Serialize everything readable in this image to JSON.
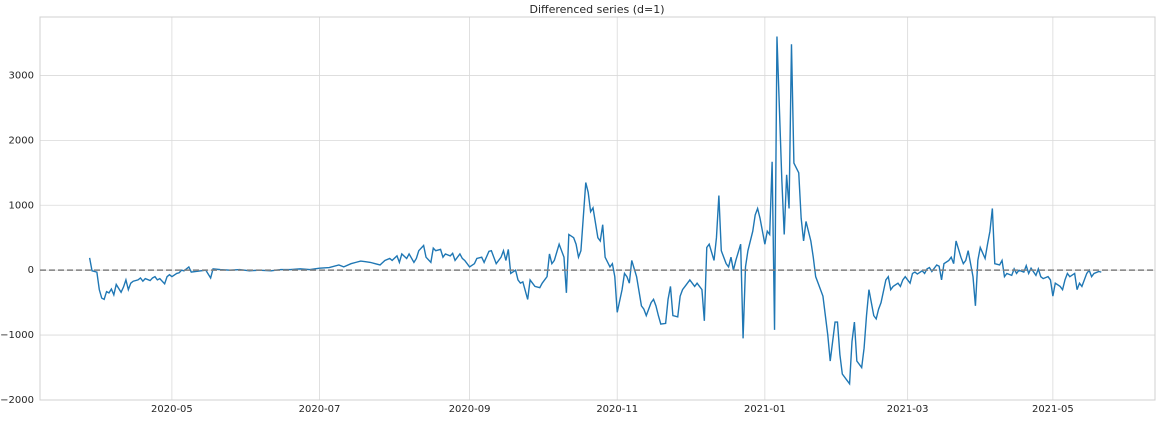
{
  "chart_data": {
    "type": "line",
    "title": "Differenced series (d=1)",
    "x": [
      87,
      88,
      90,
      91,
      92,
      93,
      94,
      95,
      96,
      97,
      98,
      100,
      101,
      102,
      103,
      104,
      105,
      107,
      108,
      109,
      110,
      112,
      113,
      114,
      115,
      116,
      118,
      119,
      120,
      121,
      123,
      124,
      125,
      126,
      128,
      129,
      131,
      133,
      135,
      137,
      138,
      141,
      145,
      149,
      153,
      157,
      162,
      166,
      170,
      174,
      178,
      182,
      186,
      190,
      192,
      195,
      197,
      199,
      201,
      203,
      205,
      207,
      209,
      211,
      212,
      214,
      215,
      216,
      218,
      219,
      221,
      222,
      223,
      225,
      226,
      228,
      229,
      230,
      232,
      233,
      234,
      236,
      237,
      238,
      240,
      241,
      242,
      244,
      246,
      247,
      249,
      250,
      252,
      253,
      254,
      255,
      257,
      258,
      259,
      260,
      261,
      263,
      264,
      265,
      266,
      268,
      269,
      270,
      271,
      273,
      274,
      276,
      277,
      278,
      279,
      281,
      282,
      283,
      284,
      285,
      287,
      288,
      289,
      290,
      292,
      293,
      294,
      295,
      297,
      298,
      299,
      300,
      302,
      303,
      304,
      305,
      307,
      308,
      309,
      310,
      311,
      313,
      315,
      316,
      317,
      319,
      320,
      321,
      322,
      323,
      325,
      326,
      327,
      328,
      330,
      331,
      332,
      333,
      335,
      336,
      337,
      338,
      340,
      341,
      342,
      343,
      345,
      346,
      347,
      348,
      350,
      351,
      352,
      353,
      354,
      356,
      357,
      358,
      359,
      361,
      362,
      363,
      364,
      366,
      367,
      368,
      369,
      370,
      371,
      373,
      374,
      375,
      376,
      377,
      378,
      380,
      381,
      382,
      383,
      385,
      386,
      387,
      388,
      390,
      391,
      392,
      393,
      395,
      396,
      397,
      398,
      400,
      401,
      402,
      403,
      404,
      406,
      407,
      408,
      409,
      411,
      412,
      413,
      414,
      416,
      417,
      418,
      419,
      421,
      422,
      423,
      424,
      426,
      427,
      428,
      429,
      431,
      432,
      433,
      434,
      435,
      437,
      438,
      439,
      440,
      442,
      443,
      444,
      445,
      447,
      448,
      449,
      450,
      452,
      453,
      454,
      455,
      457,
      458,
      459,
      460,
      461,
      463,
      464,
      465,
      466,
      468,
      469,
      470,
      471,
      473,
      474,
      475,
      476,
      478,
      479,
      480,
      481,
      483,
      484,
      485,
      486,
      488,
      489,
      490,
      491,
      492,
      494,
      495,
      496,
      497,
      499,
      500,
      501,
      502,
      504,
      505
    ],
    "series": [
      {
        "name": "Differenced",
        "color": "#1f77b4",
        "values": [
          190,
          -10,
          -30,
          -300,
          -430,
          -450,
          -330,
          -350,
          -290,
          -380,
          -220,
          -340,
          -260,
          -150,
          -300,
          -200,
          -170,
          -150,
          -120,
          -170,
          -130,
          -160,
          -120,
          -100,
          -150,
          -130,
          -210,
          -100,
          -70,
          -100,
          -50,
          -40,
          0,
          -10,
          50,
          -30,
          -20,
          -10,
          0,
          -120,
          20,
          10,
          0,
          10,
          -10,
          0,
          -10,
          10,
          10,
          20,
          10,
          30,
          40,
          80,
          50,
          100,
          120,
          140,
          130,
          120,
          100,
          80,
          150,
          180,
          150,
          220,
          120,
          250,
          180,
          250,
          120,
          180,
          300,
          380,
          200,
          120,
          340,
          300,
          320,
          200,
          250,
          220,
          260,
          150,
          250,
          180,
          150,
          50,
          100,
          180,
          200,
          120,
          290,
          300,
          200,
          100,
          200,
          300,
          150,
          320,
          -50,
          0,
          -150,
          -200,
          -180,
          -450,
          -150,
          -200,
          -250,
          -270,
          -200,
          -100,
          250,
          100,
          150,
          400,
          300,
          200,
          -350,
          550,
          500,
          400,
          200,
          300,
          1350,
          1200,
          900,
          960,
          500,
          450,
          700,
          200,
          50,
          100,
          -100,
          -650,
          -300,
          -50,
          -100,
          -200,
          150,
          -100,
          -550,
          -600,
          -700,
          -500,
          -450,
          -550,
          -700,
          -830,
          -820,
          -450,
          -250,
          -700,
          -720,
          -400,
          -300,
          -250,
          -150,
          -200,
          -250,
          -200,
          -300,
          -780,
          350,
          400,
          150,
          500,
          1150,
          300,
          100,
          50,
          200,
          0,
          150,
          400,
          -1050,
          50,
          300,
          600,
          850,
          950,
          800,
          400,
          600,
          550,
          1670,
          -920,
          3600,
          1400,
          550,
          1470,
          950,
          3480,
          1650,
          1500,
          800,
          450,
          750,
          450,
          200,
          -100,
          -200,
          -400,
          -700,
          -1000,
          -1400,
          -800,
          -800,
          -1300,
          -1600,
          -1700,
          -1750,
          -1100,
          -800,
          -1400,
          -1500,
          -1200,
          -700,
          -300,
          -700,
          -750,
          -600,
          -500,
          -150,
          -100,
          -300,
          -250,
          -200,
          -250,
          -150,
          -100,
          -200,
          -50,
          -30,
          -60,
          -10,
          -50,
          20,
          40,
          -20,
          80,
          60,
          -150,
          100,
          150,
          200,
          100,
          450,
          200,
          100,
          150,
          300,
          -100,
          -550,
          150,
          350,
          180,
          400,
          600,
          950,
          100,
          80,
          150,
          -100,
          -50,
          -80,
          20,
          -50,
          0,
          -30,
          70,
          -50,
          30,
          -80,
          20,
          -100,
          -130,
          -100,
          -150,
          -400,
          -200,
          -250,
          -300,
          -150,
          -50,
          -100,
          -50,
          -300,
          -200,
          -250,
          -50,
          0,
          -100,
          -50,
          -20,
          -30
        ]
      }
    ],
    "xlim": [
      66.5,
      527.2
    ],
    "xticks": [
      {
        "value": 121,
        "label": "2020-05"
      },
      {
        "value": 182,
        "label": "2020-07"
      },
      {
        "value": 244,
        "label": "2020-09"
      },
      {
        "value": 305,
        "label": "2020-11"
      },
      {
        "value": 366,
        "label": "2021-01"
      },
      {
        "value": 425,
        "label": "2021-03"
      },
      {
        "value": 485,
        "label": "2021-05"
      }
    ],
    "ylim": [
      -2000,
      3900
    ],
    "yticks": [
      {
        "value": -2000,
        "label": "−2000"
      },
      {
        "value": -1000,
        "label": "−1000"
      },
      0,
      1000,
      2000,
      3000
    ],
    "reference_line": 0,
    "reference_color": "#808080",
    "grid": true
  }
}
